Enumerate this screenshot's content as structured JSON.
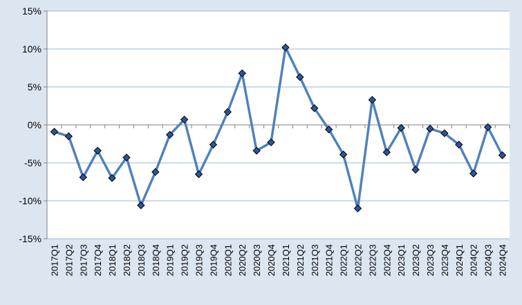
{
  "chart_data": {
    "type": "line",
    "title": "",
    "xlabel": "",
    "ylabel": "",
    "ylim": [
      -15,
      15
    ],
    "y_ticks": [
      15,
      10,
      5,
      0,
      -5,
      -10,
      -15
    ],
    "y_tick_labels": [
      "15%",
      "10%",
      "5%",
      "0%",
      "-5%",
      "-10%",
      "-15%"
    ],
    "grid": "horizontal",
    "legend": "none",
    "categories": [
      "2017Q1",
      "2017Q2",
      "2017Q3",
      "2017Q4",
      "2018Q1",
      "2018Q2",
      "2018Q3",
      "2018Q4",
      "2019Q1",
      "2019Q2",
      "2019Q3",
      "2019Q4",
      "2020Q1",
      "2020Q2",
      "2020Q3",
      "2020Q4",
      "2021Q1",
      "2021Q2",
      "2021Q3",
      "2021Q4",
      "2022Q1",
      "2022Q2",
      "2022Q3",
      "2022Q4",
      "2023Q1",
      "2023Q2",
      "2023Q3",
      "2023Q4",
      "2024Q1",
      "2024Q2",
      "2024Q3",
      "2024Q4"
    ],
    "series": [
      {
        "values": [
          -0.9,
          -1.5,
          -6.9,
          -3.4,
          -7.0,
          -4.3,
          -10.6,
          -6.2,
          -1.3,
          0.7,
          -6.5,
          -2.6,
          1.7,
          6.8,
          -3.4,
          -2.3,
          10.2,
          6.3,
          2.2,
          -0.6,
          -3.9,
          -11.0,
          3.3,
          -3.6,
          -0.4,
          -5.9,
          -0.5,
          -1.1,
          -2.6,
          -6.4,
          -0.3,
          -4.0
        ],
        "color": "#4f81bd",
        "marker_color": "#2e5597"
      }
    ]
  }
}
